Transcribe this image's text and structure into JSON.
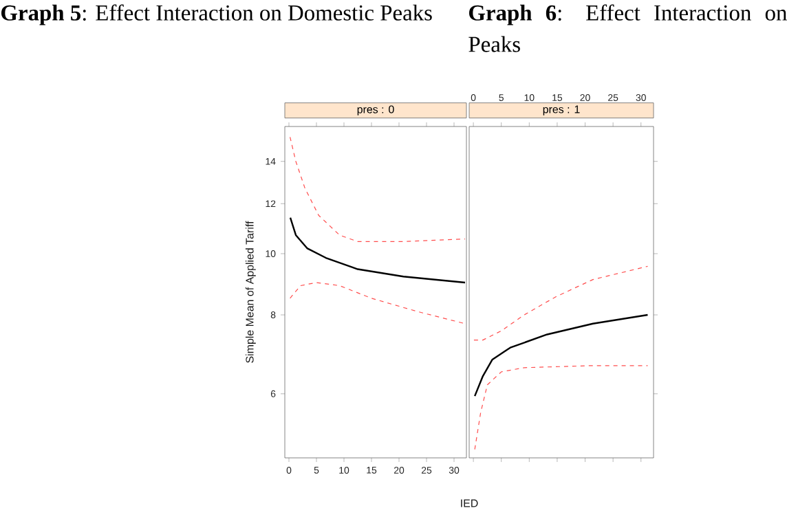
{
  "chart_data": [
    {
      "type": "line",
      "title": "pres : 0",
      "xlabel": "IED",
      "ylabel": "Simple Mean of Applied Tariff",
      "annotations": [
        "**Graph 5**: Effect Interaction on Domestic Peaks"
      ],
      "xlim": [
        -0.75,
        32.25
      ],
      "ylim": [
        4.75,
        15.9
      ],
      "log": "y",
      "xticks": [
        0,
        5,
        10,
        15,
        20,
        25,
        30
      ],
      "yticks": [
        6,
        8,
        10,
        12,
        14
      ],
      "series": [
        {
          "color": "#000000",
          "line_style": "solid",
          "x": [
            0.25,
            1.25,
            3.3,
            6.7,
            12.5,
            20.8,
            32
          ],
          "values": [
            11.4,
            10.7,
            10.2,
            9.85,
            9.45,
            9.2,
            9.0
          ]
        },
        {
          "color": "#ff4d4d",
          "line_style": "dashed",
          "x": [
            0.2,
            1.25,
            2.9,
            5.4,
            9.2,
            12.5,
            20.8,
            32
          ],
          "values": [
            15.3,
            14.0,
            12.7,
            11.5,
            10.7,
            10.45,
            10.45,
            10.55
          ]
        },
        {
          "color": "#ff4d4d",
          "line_style": "dashed",
          "x": [
            0.2,
            2.1,
            5,
            9.2,
            15,
            23.3,
            32
          ],
          "values": [
            8.5,
            8.9,
            9.0,
            8.9,
            8.5,
            8.1,
            7.75
          ]
        }
      ]
    },
    {
      "type": "line",
      "title": "pres : 1",
      "annotations": [
        "**Graph 6**: Effect Interaction on Peaks"
      ],
      "xlim": [
        -0.75,
        32.25
      ],
      "ylim": [
        4.75,
        15.9
      ],
      "log": "y",
      "tick_labels": "x",
      "xticks": [
        0,
        5,
        10,
        15,
        20,
        25,
        30
      ],
      "yticks": [
        6,
        8,
        10,
        12,
        14
      ],
      "series": [
        {
          "color": "#000000",
          "line_style": "solid",
          "x": [
            0.25,
            1.7,
            3.4,
            6.6,
            13.2,
            21.4,
            31.2
          ],
          "values": [
            5.95,
            6.4,
            6.8,
            7.1,
            7.45,
            7.75,
            8.0
          ]
        },
        {
          "color": "#ff4d4d",
          "line_style": "dashed",
          "x": [
            0.1,
            1.7,
            5,
            9.1,
            14.8,
            21.4,
            31.2
          ],
          "values": [
            7.3,
            7.3,
            7.55,
            8.0,
            8.55,
            9.1,
            9.55
          ]
        },
        {
          "color": "#ff4d4d",
          "line_style": "dashed",
          "x": [
            0.25,
            1.3,
            2.5,
            5,
            9.1,
            21.4,
            31.2
          ],
          "values": [
            4.9,
            5.6,
            6.2,
            6.5,
            6.6,
            6.65,
            6.65
          ]
        }
      ]
    }
  ]
}
